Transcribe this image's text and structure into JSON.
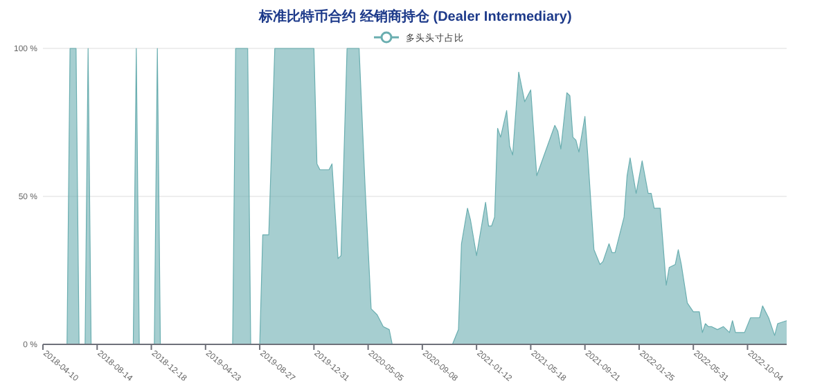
{
  "chart_data": {
    "type": "area",
    "title": "标准比特币合约 经销商持仓 (Dealer Intermediary)",
    "legend": "top",
    "grid": "y",
    "x": [
      "2018-04-10",
      "2018-06-05",
      "2018-06-12",
      "2018-06-26",
      "2018-07-03",
      "2018-07-17",
      "2018-07-24",
      "2018-07-31",
      "2018-11-06",
      "2018-11-13",
      "2018-11-20",
      "2018-12-25",
      "2019-01-01",
      "2019-01-08",
      "2019-06-25",
      "2019-07-02",
      "2019-07-30",
      "2019-08-06",
      "2019-08-27",
      "2019-09-03",
      "2019-09-17",
      "2019-10-01",
      "2019-12-31",
      "2020-01-07",
      "2020-01-14",
      "2020-02-04",
      "2020-02-11",
      "2020-02-25",
      "2020-03-03",
      "2020-03-17",
      "2020-04-14",
      "2020-04-28",
      "2020-05-12",
      "2020-05-26",
      "2020-06-02",
      "2020-06-09",
      "2020-06-23",
      "2020-06-30",
      "2020-11-17",
      "2020-12-01",
      "2020-12-08",
      "2020-12-22",
      "2020-12-29",
      "2021-01-12",
      "2021-02-02",
      "2021-02-09",
      "2021-02-16",
      "2021-02-23",
      "2021-03-02",
      "2021-03-09",
      "2021-03-23",
      "2021-03-30",
      "2021-04-06",
      "2021-04-20",
      "2021-05-04",
      "2021-05-18",
      "2021-06-01",
      "2021-07-13",
      "2021-07-20",
      "2021-07-27",
      "2021-08-10",
      "2021-08-17",
      "2021-08-24",
      "2021-08-31",
      "2021-09-07",
      "2021-09-21",
      "2021-09-28",
      "2021-10-12",
      "2021-10-26",
      "2021-11-02",
      "2021-11-16",
      "2021-11-23",
      "2021-11-30",
      "2021-12-21",
      "2021-12-28",
      "2022-01-04",
      "2022-01-18",
      "2022-02-01",
      "2022-02-15",
      "2022-02-22",
      "2022-03-01",
      "2022-03-15",
      "2022-03-29",
      "2022-04-05",
      "2022-04-19",
      "2022-04-26",
      "2022-05-03",
      "2022-05-17",
      "2022-05-31",
      "2022-06-14",
      "2022-06-21",
      "2022-06-28",
      "2022-07-05",
      "2022-07-12",
      "2022-07-26",
      "2022-08-09",
      "2022-08-23",
      "2022-08-30",
      "2022-09-06",
      "2022-09-27",
      "2022-10-11",
      "2022-11-01",
      "2022-11-08",
      "2022-11-22",
      "2022-12-06",
      "2022-12-13",
      "2023-01-03"
    ],
    "series": [
      {
        "name": "多头头寸占比",
        "color": "#6aaeb0",
        "values": [
          0,
          0,
          100,
          100,
          0,
          0,
          100,
          0,
          0,
          100,
          0,
          0,
          100,
          0,
          0,
          100,
          100,
          0,
          0,
          37,
          37,
          100,
          100,
          61,
          59,
          59,
          61,
          29,
          30,
          100,
          100,
          53,
          12,
          10,
          8,
          6,
          5,
          0,
          0,
          5,
          34,
          46,
          42,
          30,
          48,
          40,
          40,
          43,
          73,
          70,
          79,
          67,
          64,
          92,
          82,
          86,
          57,
          74,
          72,
          66,
          85,
          84,
          70,
          69,
          65,
          77,
          63,
          32,
          27,
          28,
          34,
          31,
          31,
          43,
          57,
          63,
          51,
          62,
          51,
          51,
          46,
          46,
          20,
          26,
          27,
          32,
          27,
          14,
          11,
          11,
          4,
          7,
          6,
          6,
          5,
          6,
          4,
          8,
          4,
          4,
          9,
          9,
          13,
          9,
          3,
          7,
          8
        ]
      }
    ],
    "xlim": [
      "2018-04-10",
      "2023-01-03"
    ],
    "xticks": [
      "2018-04-10",
      "2018-08-14",
      "2018-12-18",
      "2019-04-23",
      "2019-08-27",
      "2019-12-31",
      "2020-05-05",
      "2020-09-08",
      "2021-01-12",
      "2021-05-18",
      "2021-09-21",
      "2022-01-25",
      "2022-05-31",
      "2022-10-04"
    ],
    "ylim": [
      0,
      100
    ],
    "yticks": [
      {
        "value": 0,
        "label": "0 %"
      },
      {
        "value": 50,
        "label": "50 %"
      },
      {
        "value": 100,
        "label": "100 %"
      }
    ]
  }
}
